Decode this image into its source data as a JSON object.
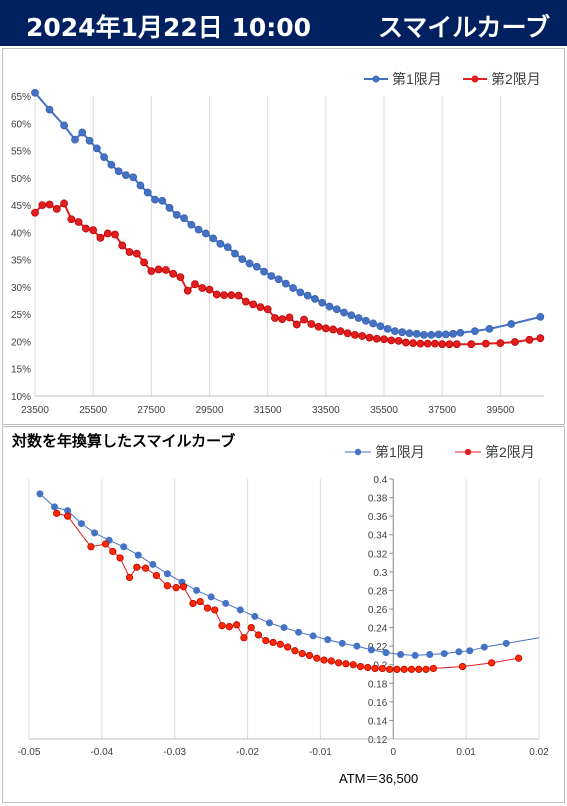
{
  "header": {
    "date": "2024年1月22日 10:00",
    "title": "スマイルカーブ"
  },
  "chart_data": [
    {
      "type": "line",
      "title": "",
      "xlabel": "",
      "ylabel": "",
      "xlim": [
        23500,
        41000
      ],
      "ylim": [
        0.1,
        0.65
      ],
      "x_ticks": [
        23500,
        25500,
        27500,
        29500,
        31500,
        33500,
        35500,
        37500,
        39500
      ],
      "y_ticks": [
        0.1,
        0.15,
        0.2,
        0.25,
        0.3,
        0.35,
        0.4,
        0.45,
        0.5,
        0.55,
        0.6,
        0.65
      ],
      "y_tick_labels": [
        "10%",
        "15%",
        "20%",
        "25%",
        "30%",
        "35%",
        "40%",
        "45%",
        "50%",
        "55%",
        "60%",
        "65%"
      ],
      "grid": "vertical",
      "legend": "top-right",
      "series": [
        {
          "name": "第1限月",
          "color": "#4472c4",
          "x": [
            23500,
            24000,
            24500,
            24875,
            25125,
            25375,
            25625,
            25875,
            26125,
            26375,
            26625,
            26875,
            27125,
            27375,
            27625,
            27875,
            28125,
            28375,
            28625,
            28875,
            29125,
            29375,
            29625,
            29875,
            30125,
            30375,
            30625,
            30875,
            31125,
            31375,
            31625,
            31875,
            32125,
            32375,
            32625,
            32875,
            33125,
            33375,
            33625,
            33875,
            34125,
            34375,
            34625,
            34875,
            35125,
            35375,
            35625,
            35875,
            36125,
            36375,
            36625,
            36875,
            37125,
            37375,
            37625,
            37875,
            38125,
            38625,
            39125,
            39875,
            40875
          ],
          "y": [
            0.656,
            0.625,
            0.596,
            0.57,
            0.583,
            0.568,
            0.554,
            0.538,
            0.524,
            0.512,
            0.505,
            0.501,
            0.486,
            0.473,
            0.46,
            0.458,
            0.445,
            0.432,
            0.426,
            0.414,
            0.405,
            0.398,
            0.389,
            0.379,
            0.373,
            0.361,
            0.351,
            0.343,
            0.337,
            0.328,
            0.32,
            0.314,
            0.306,
            0.298,
            0.29,
            0.284,
            0.278,
            0.271,
            0.264,
            0.259,
            0.253,
            0.248,
            0.243,
            0.238,
            0.233,
            0.228,
            0.223,
            0.219,
            0.217,
            0.215,
            0.214,
            0.212,
            0.212,
            0.213,
            0.213,
            0.214,
            0.216,
            0.219,
            0.223,
            0.232,
            0.245
          ]
        },
        {
          "name": "第2限月",
          "color": "#e02020",
          "x": [
            23500,
            23750,
            24000,
            24250,
            24500,
            24750,
            25000,
            25250,
            25500,
            25750,
            26000,
            26250,
            26500,
            26750,
            27000,
            27250,
            27500,
            27750,
            28000,
            28250,
            28500,
            28750,
            29000,
            29250,
            29500,
            29750,
            30000,
            30250,
            30500,
            30750,
            31000,
            31250,
            31500,
            31750,
            32000,
            32250,
            32500,
            32750,
            33000,
            33250,
            33500,
            33750,
            34000,
            34250,
            34500,
            34750,
            35000,
            35250,
            35500,
            35750,
            36000,
            36250,
            36500,
            36750,
            37000,
            37250,
            37500,
            37750,
            38000,
            38500,
            39000,
            39500,
            40000,
            40500,
            40875
          ],
          "y": [
            0.436,
            0.45,
            0.451,
            0.443,
            0.453,
            0.424,
            0.419,
            0.407,
            0.404,
            0.39,
            0.398,
            0.396,
            0.376,
            0.364,
            0.361,
            0.345,
            0.329,
            0.332,
            0.331,
            0.324,
            0.318,
            0.293,
            0.305,
            0.298,
            0.295,
            0.286,
            0.285,
            0.285,
            0.284,
            0.273,
            0.268,
            0.263,
            0.259,
            0.243,
            0.241,
            0.244,
            0.231,
            0.24,
            0.232,
            0.227,
            0.224,
            0.222,
            0.219,
            0.215,
            0.212,
            0.21,
            0.207,
            0.205,
            0.204,
            0.202,
            0.201,
            0.198,
            0.197,
            0.196,
            0.196,
            0.196,
            0.195,
            0.195,
            0.195,
            0.195,
            0.196,
            0.197,
            0.199,
            0.203,
            0.206
          ]
        }
      ]
    },
    {
      "type": "line",
      "title": "対数を年換算したスマイルカーブ",
      "footnote": "ATM＝36,500",
      "xlim": [
        -0.05,
        0.02
      ],
      "ylim": [
        0.12,
        0.4
      ],
      "x_ticks": [
        -0.05,
        -0.04,
        -0.03,
        -0.02,
        -0.01,
        0,
        0.01,
        0.02
      ],
      "x_tick_labels": [
        "-0.05",
        "-0.04",
        "-0.03",
        "-0.02",
        "-0.01",
        "0",
        "0.01",
        "0.02"
      ],
      "y_ticks": [
        0.12,
        0.14,
        0.16,
        0.18,
        0.2,
        0.22,
        0.24,
        0.26,
        0.28,
        0.3,
        0.32,
        0.34,
        0.36,
        0.38,
        0.4
      ],
      "y_tick_labels": [
        "0.12",
        "0.14",
        "0.16",
        "0.18",
        "0.2",
        "0.22",
        "0.24",
        "0.26",
        "0.28",
        "0.3",
        "0.32",
        "0.34",
        "0.36",
        "0.38",
        "0.4"
      ],
      "grid": "vertical",
      "legend": "top-right",
      "series": [
        {
          "name": "第1限月",
          "color": "#4472c4",
          "x": [
            -0.0485,
            -0.0465,
            -0.0447,
            -0.0428,
            -0.041,
            -0.039,
            -0.037,
            -0.035,
            -0.033,
            -0.031,
            -0.029,
            -0.027,
            -0.025,
            -0.023,
            -0.021,
            -0.019,
            -0.017,
            -0.015,
            -0.013,
            -0.011,
            -0.009,
            -0.007,
            -0.005,
            -0.003,
            -0.001,
            0.001,
            0.003,
            0.005,
            0.007,
            0.009,
            0.0105,
            0.0125,
            0.0155
          ],
          "y": [
            0.384,
            0.37,
            0.366,
            0.352,
            0.342,
            0.334,
            0.327,
            0.318,
            0.308,
            0.298,
            0.289,
            0.28,
            0.273,
            0.266,
            0.259,
            0.252,
            0.245,
            0.24,
            0.235,
            0.231,
            0.227,
            0.223,
            0.22,
            0.216,
            0.213,
            0.211,
            0.21,
            0.211,
            0.212,
            0.214,
            0.215,
            0.219,
            0.223
          ],
          "trend_end": [
            0.02,
            0.229
          ]
        },
        {
          "name": "第2限月",
          "color": "#e02020",
          "x": [
            -0.0462,
            -0.0447,
            -0.0415,
            -0.0395,
            -0.0385,
            -0.0375,
            -0.0362,
            -0.0352,
            -0.034,
            -0.0325,
            -0.031,
            -0.0298,
            -0.0288,
            -0.0275,
            -0.0265,
            -0.0255,
            -0.0245,
            -0.0235,
            -0.0225,
            -0.0215,
            -0.0205,
            -0.0195,
            -0.0185,
            -0.0175,
            -0.0165,
            -0.0155,
            -0.0145,
            -0.0135,
            -0.0125,
            -0.0115,
            -0.0105,
            -0.0095,
            -0.0085,
            -0.0075,
            -0.0065,
            -0.0055,
            -0.0045,
            -0.0035,
            -0.0025,
            -0.0015,
            -0.0005,
            0.0005,
            0.0015,
            0.0025,
            0.0035,
            0.0045,
            0.0055,
            0.0095,
            0.0135,
            0.0172
          ],
          "y": [
            0.363,
            0.36,
            0.327,
            0.33,
            0.322,
            0.315,
            0.294,
            0.305,
            0.304,
            0.296,
            0.285,
            0.283,
            0.284,
            0.266,
            0.268,
            0.261,
            0.259,
            0.242,
            0.241,
            0.243,
            0.229,
            0.24,
            0.232,
            0.226,
            0.224,
            0.222,
            0.219,
            0.215,
            0.212,
            0.21,
            0.207,
            0.205,
            0.204,
            0.202,
            0.201,
            0.2,
            0.198,
            0.197,
            0.196,
            0.196,
            0.195,
            0.195,
            0.195,
            0.195,
            0.195,
            0.195,
            0.196,
            0.198,
            0.202,
            0.207
          ]
        }
      ]
    }
  ]
}
